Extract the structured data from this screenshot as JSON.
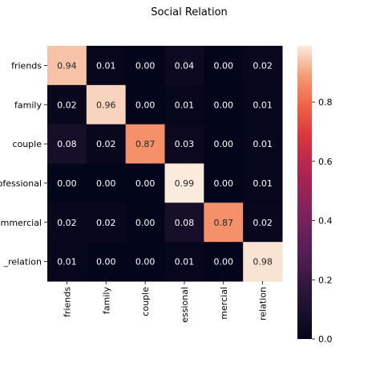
{
  "chart_data": {
    "type": "heatmap",
    "title": "Social Relation",
    "xlabel": "",
    "ylabel": "",
    "row_labels": [
      "friends",
      "family",
      "couple",
      "ofessional",
      "mmercial",
      "_relation"
    ],
    "col_labels": [
      "friends",
      "family",
      "couple",
      "essional",
      "mercial",
      "relation"
    ],
    "values": [
      [
        0.94,
        0.01,
        0.0,
        0.04,
        0.0,
        0.02
      ],
      [
        0.02,
        0.96,
        0.0,
        0.01,
        0.0,
        0.01
      ],
      [
        0.08,
        0.02,
        0.87,
        0.03,
        0.0,
        0.01
      ],
      [
        0.0,
        0.0,
        0.0,
        0.99,
        0.0,
        0.01
      ],
      [
        0.02,
        0.02,
        0.0,
        0.08,
        0.87,
        0.02
      ],
      [
        0.01,
        0.0,
        0.0,
        0.01,
        0.0,
        0.98
      ]
    ],
    "value_labels": [
      [
        "0.94",
        "0.01",
        "0.00",
        "0.04",
        "0.00",
        "0.02"
      ],
      [
        "0.02",
        "0.96",
        "0.00",
        "0.01",
        "0.00",
        "0.01"
      ],
      [
        "0.08",
        "0.02",
        "0.87",
        "0.03",
        "0.00",
        "0.01"
      ],
      [
        "0.00",
        "0.00",
        "0.00",
        "0.99",
        "0.00",
        "0.01"
      ],
      [
        "0.02",
        "0.02",
        "0.00",
        "0.08",
        "0.87",
        "0.02"
      ],
      [
        "0.01",
        "0.00",
        "0.00",
        "0.01",
        "0.00",
        "0.98"
      ]
    ],
    "colormap": "rocket",
    "vmin": 0.0,
    "vmax": 0.99,
    "colorbar": {
      "ticks": [
        0.0,
        0.2,
        0.4,
        0.6,
        0.8
      ],
      "tick_labels": [
        "0.0",
        "0.2",
        "0.4",
        "0.6",
        "0.8"
      ]
    },
    "grid": false,
    "legend": "colorbar-right"
  }
}
